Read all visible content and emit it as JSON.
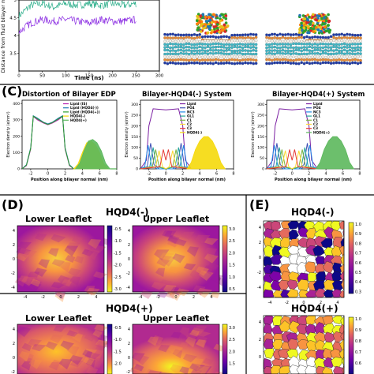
{
  "panel_b": {
    "ylabel": "Distance from fluid bilayer m",
    "xlabel": "Time (ns)",
    "yticks": [
      "5",
      "4.5",
      "4",
      "3.5"
    ],
    "xticks": [
      "0",
      "50",
      "100",
      "150",
      "200",
      "250",
      "300"
    ],
    "colors": {
      "series_a": "#2cae8a",
      "series_b": "#8a2be2"
    }
  },
  "panel_c": {
    "letter": "(C)",
    "titles": [
      "Distortion of Bilayer EDP",
      "Bilayer-HQD4(-) System",
      "Bilayer-HQD4(+) System"
    ],
    "ylabel": "Electron density (e/nm³)",
    "xlabel": "Position along bilayer normal (nm)",
    "legend1": [
      "Lipid (IS)",
      "Lipid (HQD4(-))",
      "Lipid (HQD4(+))",
      "HQD4(-)",
      "HQD4(+)"
    ],
    "legend2": [
      "Lipid",
      "PO4",
      "NC3",
      "GL1",
      "C1",
      "C2",
      "C3",
      "HQD4(-)"
    ],
    "legend3": [
      "Lipid",
      "PO4",
      "NC3",
      "GL1",
      "C1",
      "C2",
      "C3",
      "HQD4(+)"
    ],
    "xticks": [
      "-2",
      "0",
      "2",
      "4",
      "6",
      "8"
    ],
    "yticks1": [
      "400",
      "300",
      "200",
      "100",
      "0"
    ],
    "yticks2": [
      "300",
      "250",
      "200",
      "150",
      "100",
      "50",
      "0"
    ],
    "yticks3": [
      "300",
      "250",
      "200",
      "150",
      "100",
      "50",
      "0"
    ]
  },
  "panel_d": {
    "letter": "(D)",
    "title_top": "HQD4(-)",
    "title_bottom": "HQD4(+)",
    "lower": "Lower Leaflet",
    "upper": "Upper Leaflet",
    "cb_lower": [
      "-0.5",
      "-1.0",
      "-1.5",
      "-2.0",
      "-2.5",
      "-3.0"
    ],
    "cb_upper": [
      "3.0",
      "2.5",
      "2.0",
      "1.5",
      "1.0",
      "0.5"
    ],
    "xticks": [
      "-4",
      "-2",
      "0",
      "2",
      "4"
    ],
    "yticks": [
      "4",
      "2",
      "0",
      "-2",
      "-4"
    ]
  },
  "panel_e": {
    "letter": "(E)",
    "title_top": "HQD4(-)",
    "title_bottom": "HQD4(+)",
    "cb": [
      "1.0",
      "0.9",
      "0.8",
      "0.7",
      "0.6",
      "0.5",
      "0.4",
      "0.3"
    ],
    "cb2": [
      "1.0",
      "0.9",
      "0.8",
      "0.7",
      "0.6"
    ],
    "xticks": [
      "-4",
      "-2",
      "0",
      "2",
      "4"
    ]
  },
  "chart_data": [
    {
      "type": "line",
      "xlabel": "Time (ns)",
      "ylabel": "Distance from fluid bilayer m",
      "xlim": [
        0,
        300
      ],
      "ylim": [
        3.0,
        5.0
      ],
      "series": [
        {
          "x": [
            0,
            25,
            50,
            75,
            100,
            125,
            150,
            175,
            200,
            225,
            250
          ],
          "y": [
            4.55,
            4.85,
            4.9,
            4.8,
            4.9,
            4.85,
            4.9,
            4.85,
            4.9,
            4.85,
            4.9
          ]
        },
        {
          "x": [
            0,
            25,
            50,
            75,
            100,
            125,
            150,
            175,
            200,
            225,
            250
          ],
          "y": [
            4.1,
            4.35,
            4.45,
            4.4,
            4.45,
            4.4,
            4.35,
            4.45,
            4.4,
            4.4,
            4.45
          ]
        }
      ]
    },
    {
      "type": "line",
      "title": "Distortion of Bilayer EDP",
      "xlabel": "Position along bilayer normal (nm)",
      "ylabel": "Electron density (e/nm³)",
      "xlim": [
        -3,
        8
      ],
      "ylim": [
        0,
        420
      ],
      "series": [
        {
          "name": "Lipid (IS)",
          "x": [
            -3,
            -2.5,
            -2,
            -1.7,
            -1.2,
            -0.5,
            0,
            0.5,
            1.2,
            1.7,
            2,
            2.5,
            3,
            8
          ],
          "y": [
            0,
            20,
            120,
            320,
            300,
            280,
            270,
            280,
            300,
            320,
            120,
            20,
            0,
            0
          ]
        },
        {
          "name": "Lipid (HQD4(-))",
          "x": [
            -3,
            -2.5,
            -2,
            -1.7,
            -1.2,
            -0.5,
            0,
            0.5,
            1.2,
            1.7,
            2,
            2.5,
            3,
            8
          ],
          "y": [
            0,
            25,
            130,
            325,
            310,
            285,
            275,
            285,
            310,
            325,
            130,
            25,
            0,
            0
          ]
        },
        {
          "name": "Lipid (HQD4(+))",
          "x": [
            -3,
            -2.5,
            -2,
            -1.7,
            -1.2,
            -0.5,
            0,
            0.5,
            1.2,
            1.7,
            2,
            2.5,
            3,
            8
          ],
          "y": [
            0,
            22,
            125,
            322,
            305,
            283,
            272,
            283,
            305,
            322,
            125,
            22,
            0,
            0
          ]
        },
        {
          "name": "HQD4(-)",
          "x": [
            3,
            3.5,
            4,
            4.5,
            5,
            5.5,
            6,
            6.5,
            7
          ],
          "y": [
            0,
            30,
            100,
            160,
            170,
            150,
            100,
            30,
            0
          ]
        },
        {
          "name": "HQD4(+)",
          "x": [
            3.2,
            3.7,
            4.2,
            4.7,
            5.2,
            5.7,
            6.2,
            6.7,
            7.2
          ],
          "y": [
            0,
            35,
            110,
            170,
            180,
            160,
            110,
            35,
            0
          ]
        }
      ]
    },
    {
      "type": "line",
      "title": "Bilayer-HQD4(-) System",
      "xlabel": "Position along bilayer normal (nm)",
      "ylabel": "Electron density (e/nm³)",
      "xlim": [
        -3,
        8
      ],
      "ylim": [
        0,
        320
      ],
      "series": [
        {
          "name": "Lipid",
          "x": [
            -3,
            -2.3,
            -2,
            -1.5,
            0,
            1.5,
            2,
            2.3,
            3
          ],
          "y": [
            0,
            40,
            200,
            280,
            275,
            280,
            200,
            40,
            0
          ]
        },
        {
          "name": "PO4",
          "x": [
            -3,
            -2.2,
            -1.8,
            -1.4,
            -0.8,
            0.8,
            1.4,
            1.8,
            2.2,
            3
          ],
          "y": [
            0,
            10,
            120,
            20,
            0,
            0,
            20,
            120,
            10,
            0
          ]
        },
        {
          "name": "NC3",
          "x": [
            -3,
            -2.5,
            -2.1,
            -1.7,
            -1,
            1,
            1.7,
            2.1,
            2.5,
            3
          ],
          "y": [
            0,
            10,
            110,
            15,
            0,
            0,
            15,
            110,
            10,
            0
          ]
        },
        {
          "name": "GL1",
          "x": [
            -3,
            -1.9,
            -1.5,
            -1.1,
            0,
            1.1,
            1.5,
            1.9,
            3
          ],
          "y": [
            0,
            10,
            100,
            10,
            0,
            10,
            100,
            10,
            0
          ]
        },
        {
          "name": "C1",
          "x": [
            -3,
            -1.6,
            -1.2,
            -0.8,
            0,
            0.8,
            1.2,
            1.6,
            3
          ],
          "y": [
            0,
            10,
            90,
            10,
            0,
            10,
            90,
            10,
            0
          ]
        },
        {
          "name": "C2",
          "x": [
            -3,
            -1.2,
            -0.8,
            -0.4,
            0,
            0.4,
            0.8,
            1.2,
            3
          ],
          "y": [
            0,
            10,
            85,
            10,
            0,
            10,
            85,
            10,
            0
          ]
        },
        {
          "name": "C3",
          "x": [
            -3,
            -0.7,
            -0.3,
            0,
            0.3,
            0.7,
            3
          ],
          "y": [
            0,
            10,
            90,
            40,
            90,
            10,
            0
          ]
        },
        {
          "name": "HQD4(-)",
          "x": [
            2.5,
            3,
            3.5,
            4,
            4.5,
            5,
            5.5,
            6,
            6.5,
            7
          ],
          "y": [
            0,
            30,
            90,
            130,
            150,
            150,
            130,
            90,
            30,
            0
          ]
        }
      ]
    },
    {
      "type": "line",
      "title": "Bilayer-HQD4(+) System",
      "xlabel": "Position along bilayer normal (nm)",
      "ylabel": "Electron density (e/nm³)",
      "xlim": [
        -3,
        8
      ],
      "ylim": [
        0,
        320
      ],
      "series": [
        {
          "name": "Lipid",
          "x": [
            -3,
            -2.3,
            -2,
            -1.5,
            0,
            1.5,
            2,
            2.3,
            3
          ],
          "y": [
            0,
            40,
            200,
            280,
            275,
            280,
            200,
            40,
            0
          ]
        },
        {
          "name": "PO4",
          "x": [
            -3,
            -2.2,
            -1.8,
            -1.4,
            -0.8,
            0.8,
            1.4,
            1.8,
            2.2,
            3
          ],
          "y": [
            0,
            10,
            120,
            20,
            0,
            0,
            20,
            120,
            10,
            0
          ]
        },
        {
          "name": "NC3",
          "x": [
            -3,
            -2.5,
            -2.1,
            -1.7,
            -1,
            1,
            1.7,
            2.1,
            2.5,
            3
          ],
          "y": [
            0,
            10,
            110,
            15,
            0,
            0,
            15,
            110,
            10,
            0
          ]
        },
        {
          "name": "GL1",
          "x": [
            -3,
            -1.9,
            -1.5,
            -1.1,
            0,
            1.1,
            1.5,
            1.9,
            3
          ],
          "y": [
            0,
            10,
            100,
            10,
            0,
            10,
            100,
            10,
            0
          ]
        },
        {
          "name": "C1",
          "x": [
            -3,
            -1.6,
            -1.2,
            -0.8,
            0,
            0.8,
            1.2,
            1.6,
            3
          ],
          "y": [
            0,
            10,
            90,
            10,
            0,
            10,
            90,
            10,
            0
          ]
        },
        {
          "name": "C2",
          "x": [
            -3,
            -1.2,
            -0.8,
            -0.4,
            0,
            0.4,
            0.8,
            1.2,
            3
          ],
          "y": [
            0,
            10,
            85,
            10,
            0,
            10,
            85,
            10,
            0
          ]
        },
        {
          "name": "C3",
          "x": [
            -3,
            -0.7,
            -0.3,
            0,
            0.3,
            0.7,
            3
          ],
          "y": [
            0,
            10,
            90,
            40,
            90,
            10,
            0
          ]
        },
        {
          "name": "HQD4(+)",
          "x": [
            2.8,
            3.3,
            3.8,
            4.3,
            4.8,
            5.3,
            5.8,
            6.3,
            6.8,
            7.3
          ],
          "y": [
            0,
            30,
            90,
            130,
            150,
            150,
            130,
            90,
            30,
            0
          ]
        }
      ]
    },
    {
      "type": "heatmap",
      "title": "HQD4(-)",
      "subtitle": "Lower Leaflet",
      "zlim": [
        -3.0,
        -0.5
      ],
      "xlim": [
        -5,
        5
      ],
      "ylim": [
        -5,
        5
      ]
    },
    {
      "type": "heatmap",
      "title": "HQD4(-)",
      "subtitle": "Upper Leaflet",
      "zlim": [
        0.5,
        3.0
      ],
      "xlim": [
        -5,
        5
      ],
      "ylim": [
        -5,
        5
      ]
    },
    {
      "type": "heatmap",
      "title": "HQD4(+)",
      "subtitle": "Lower Leaflet",
      "zlim": [
        -3.0,
        -0.5
      ],
      "xlim": [
        -5,
        5
      ],
      "ylim": [
        -5,
        5
      ]
    },
    {
      "type": "heatmap",
      "title": "HQD4(+)",
      "subtitle": "Upper Leaflet",
      "zlim": [
        0.5,
        3.0
      ],
      "xlim": [
        -5,
        5
      ],
      "ylim": [
        -5,
        5
      ]
    },
    {
      "type": "heatmap",
      "title": "HQD4(-)",
      "zlim": [
        0.3,
        1.0
      ],
      "xlim": [
        -5,
        5
      ],
      "ylim": [
        -5,
        5
      ]
    },
    {
      "type": "heatmap",
      "title": "HQD4(+)",
      "zlim": [
        0.6,
        1.0
      ],
      "xlim": [
        -5,
        5
      ],
      "ylim": [
        -5,
        5
      ]
    }
  ]
}
